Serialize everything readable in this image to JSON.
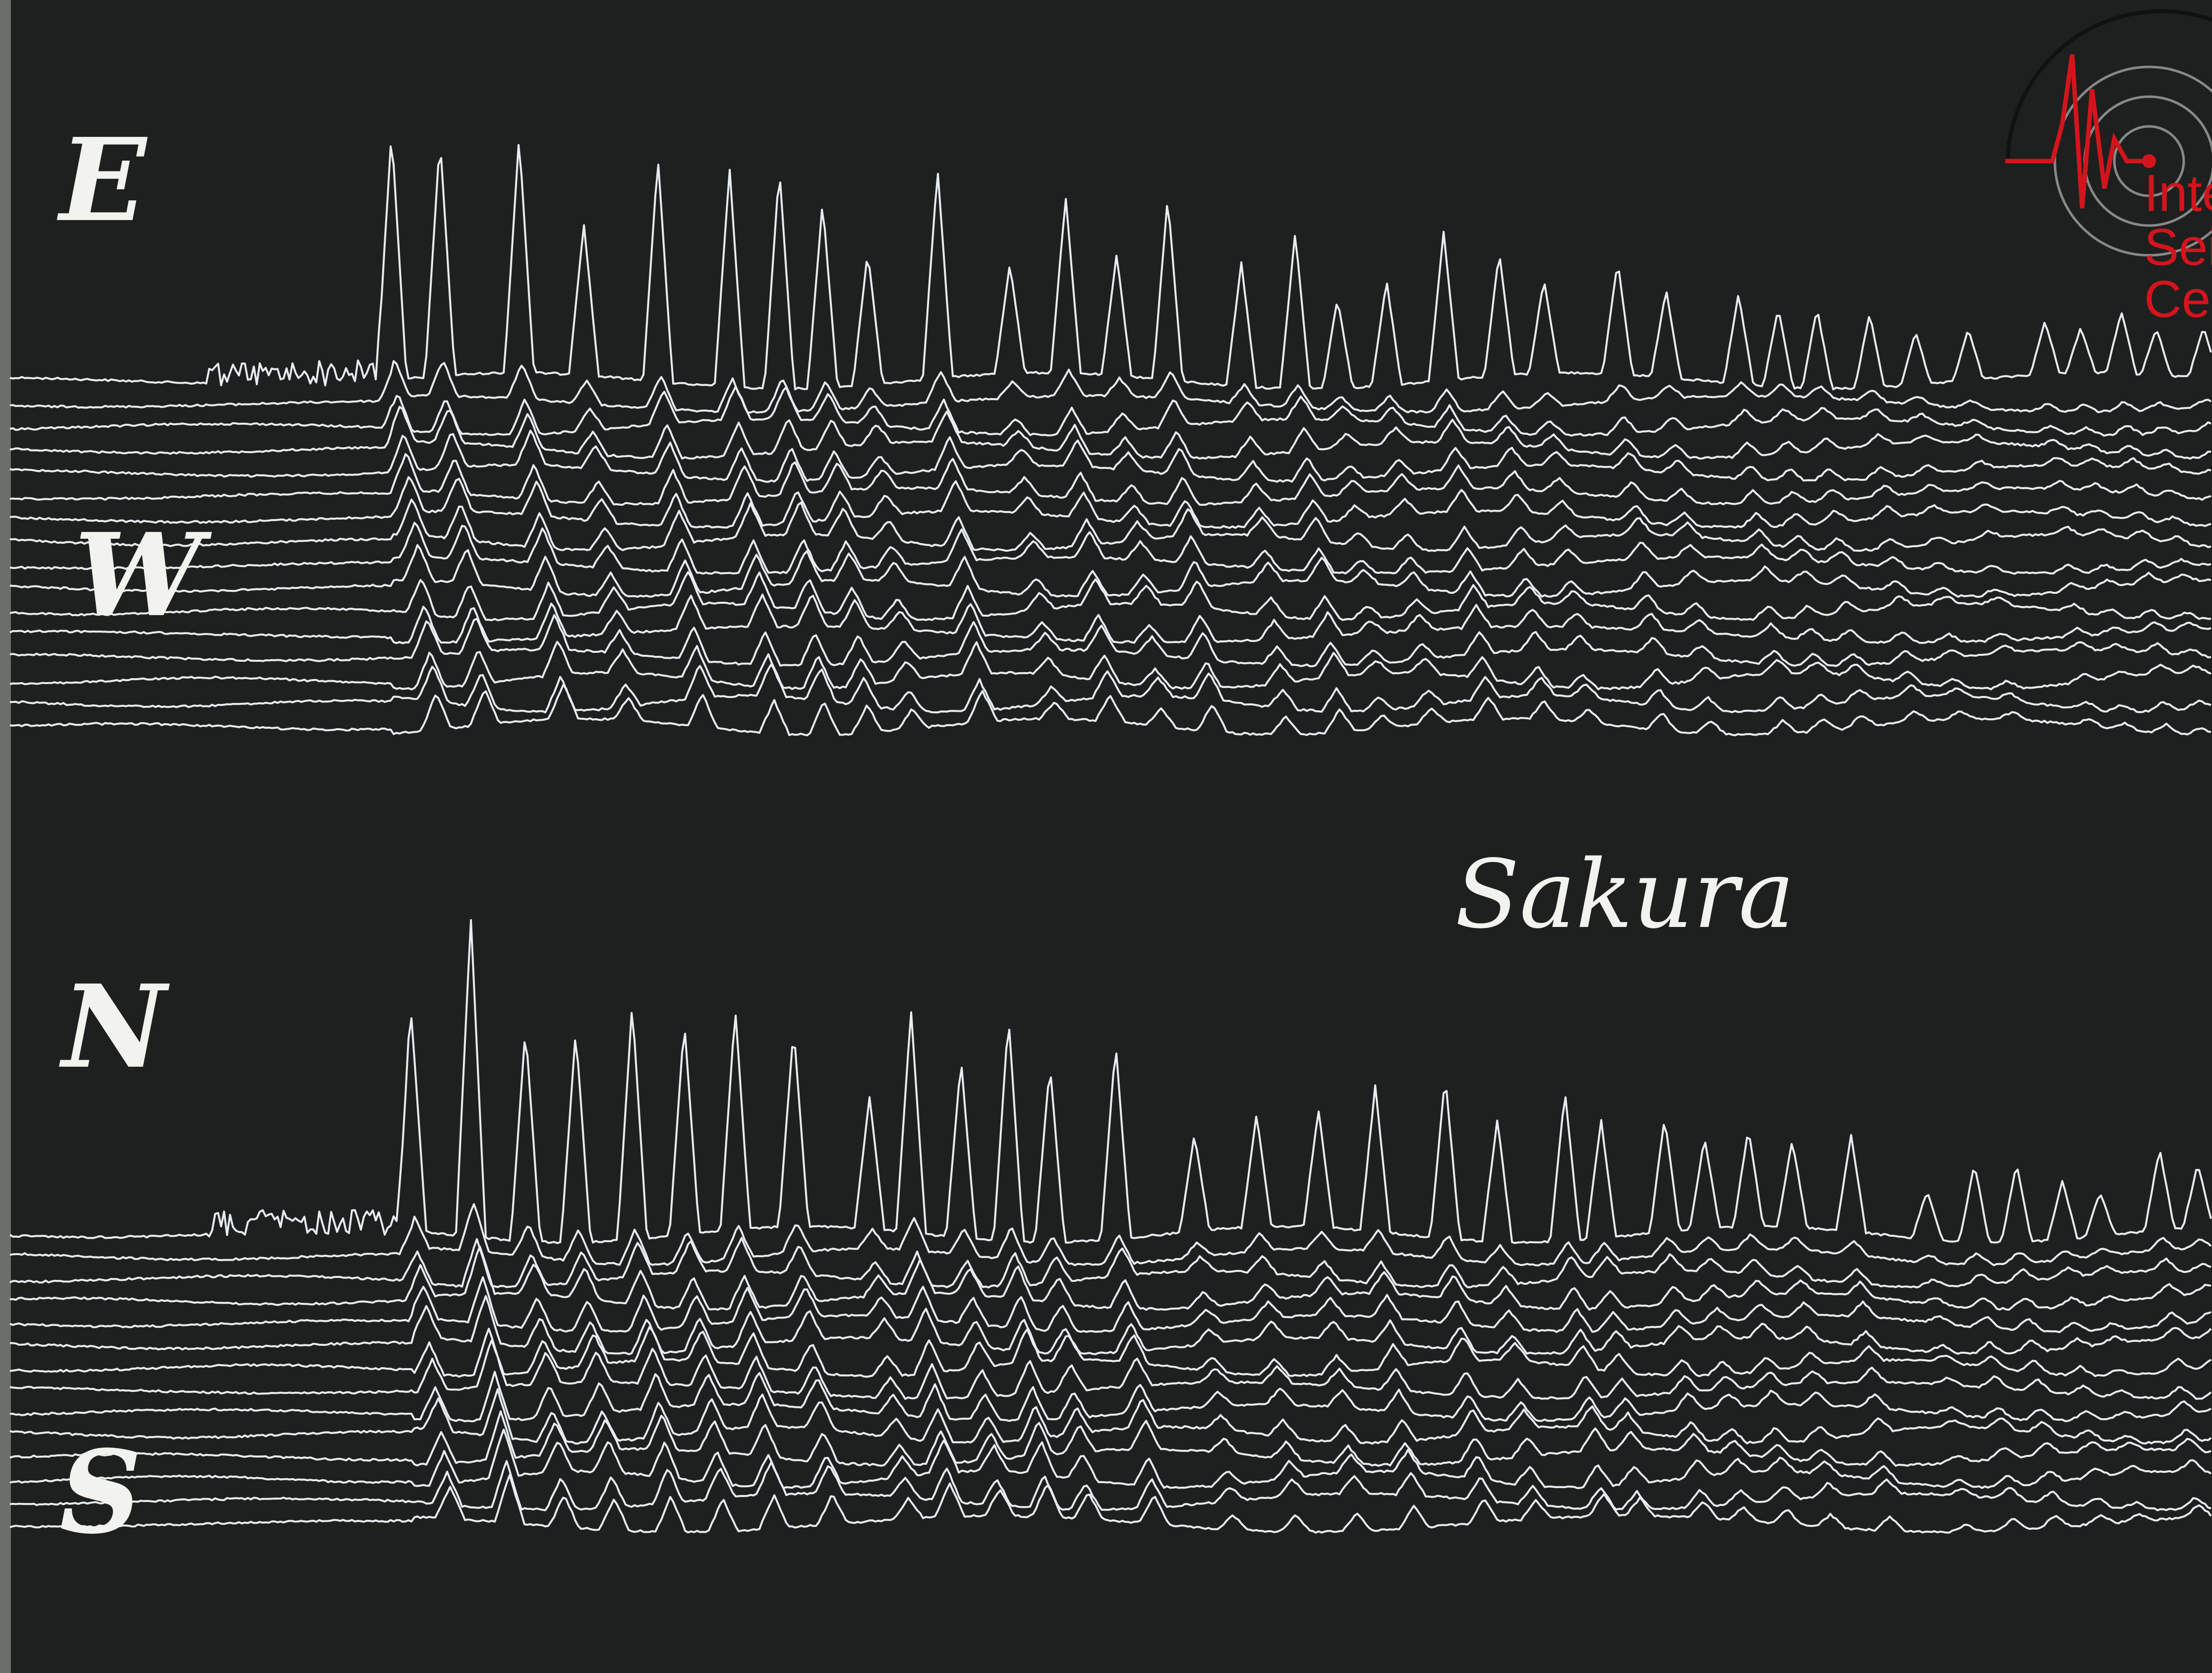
{
  "labels": {
    "e": "E",
    "w": "W",
    "n": "N",
    "s": "S"
  },
  "station": "Sakura",
  "logo": {
    "lines": [
      "Inte",
      "Seis",
      "Cen"
    ]
  }
}
